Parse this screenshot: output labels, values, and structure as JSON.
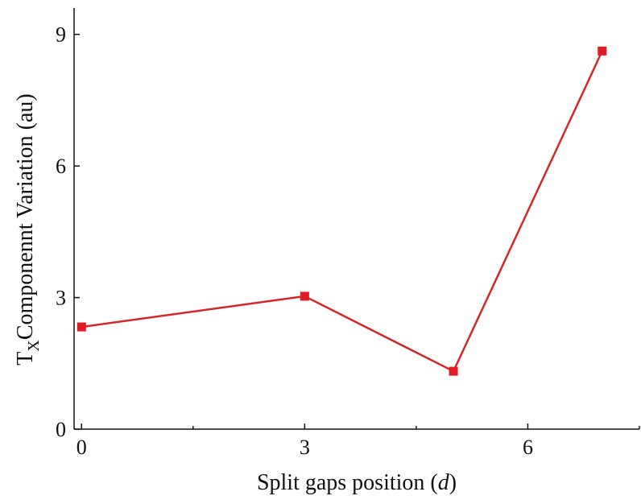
{
  "chart_data": {
    "type": "line",
    "xlabel": "Split gaps position",
    "xlabel_var": "d",
    "ylabel_prefix": "T",
    "ylabel_sub": "X",
    "ylabel_rest": "Componennt Variation (au)",
    "xlim": [
      -0.1,
      7.5
    ],
    "ylim": [
      0,
      9.6
    ],
    "x_ticks": [
      0,
      3,
      6
    ],
    "x_minor_ticks": [
      1.5,
      4.5,
      7.5
    ],
    "y_ticks": [
      0,
      3,
      6,
      9
    ],
    "x_tick_labels": [
      "0",
      "3",
      "6"
    ],
    "y_tick_labels": [
      "0",
      "3",
      "6",
      "9"
    ],
    "grid": false,
    "series": [
      {
        "x": [
          0,
          3,
          5,
          7
        ],
        "y": [
          2.33,
          3.03,
          1.32,
          8.62
        ],
        "color": "#e01b24",
        "marker": "square"
      }
    ]
  }
}
